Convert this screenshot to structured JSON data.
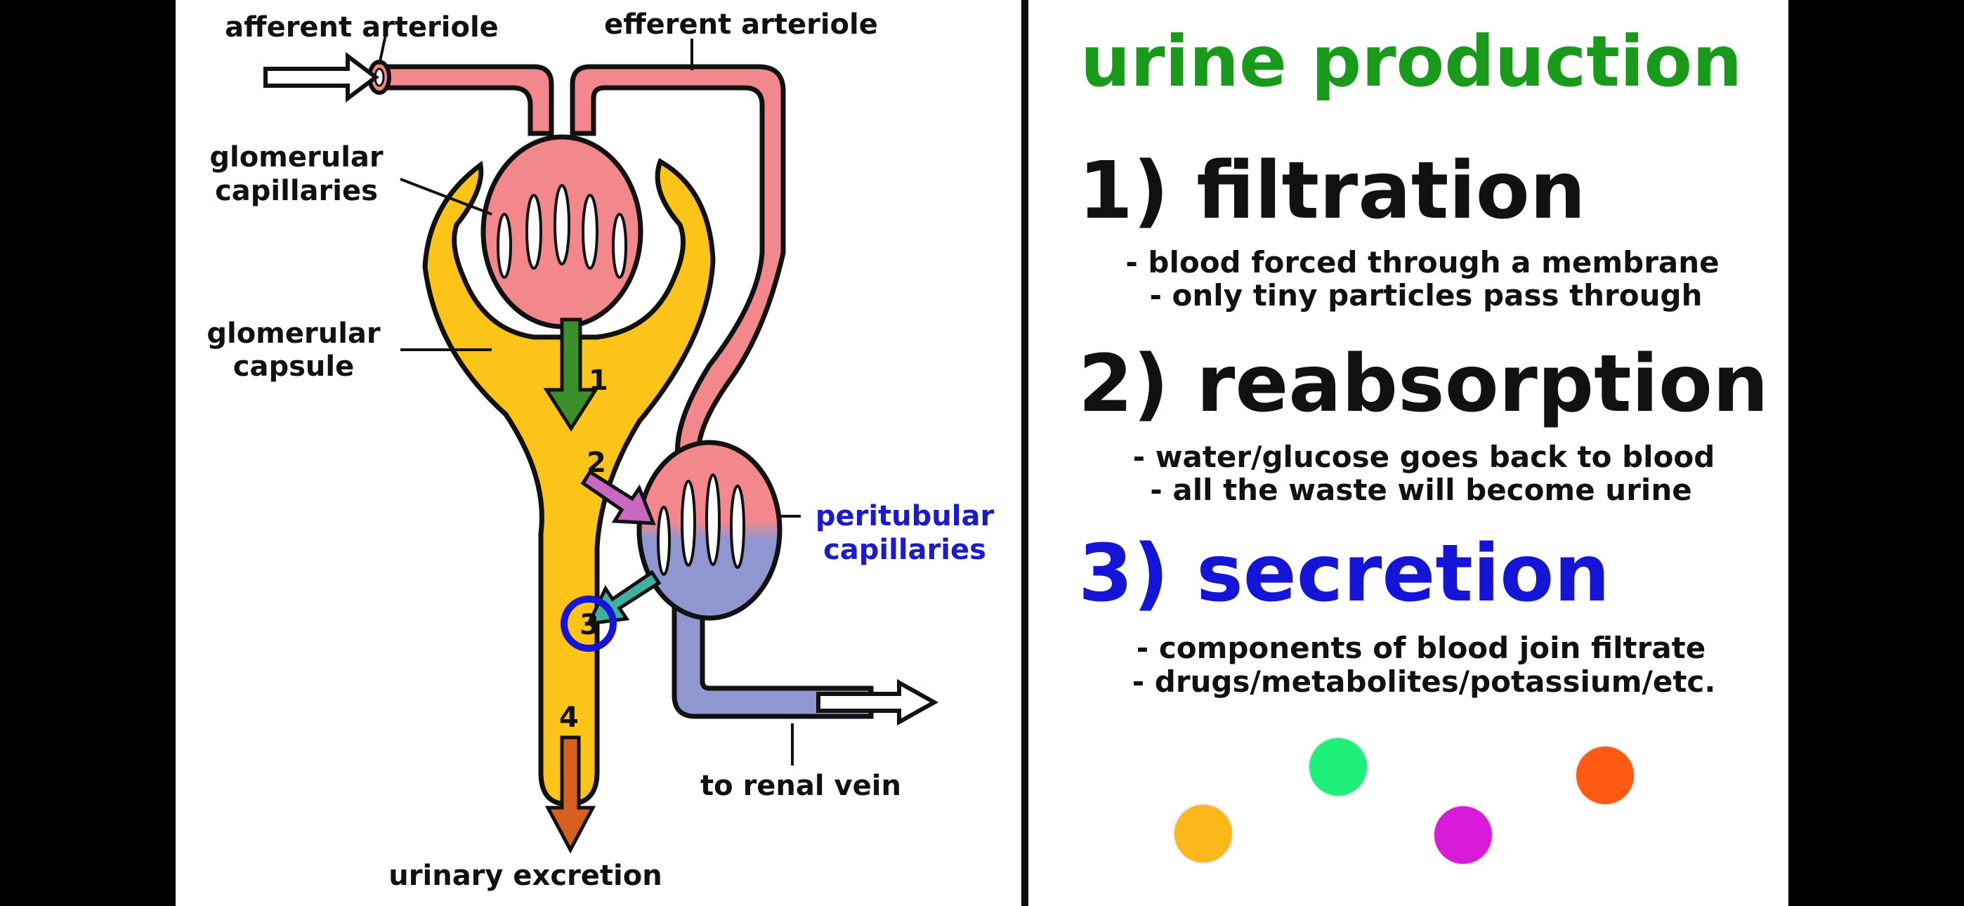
{
  "diagram": {
    "labels": {
      "afferent_arteriole": "afferent arteriole",
      "efferent_arteriole": "efferent arteriole",
      "glomerular_capillaries_line1": "glomerular",
      "glomerular_capillaries_line2": "capillaries",
      "glomerular_capsule_line1": "glomerular",
      "glomerular_capsule_line2": "capsule",
      "peritubular_capillaries_line1": "peritubular",
      "peritubular_capillaries_line2": "capillaries",
      "to_renal_vein": "to renal vein",
      "urinary_excretion": "urinary excretion"
    },
    "step_numbers": {
      "n1": "1",
      "n2": "2",
      "n3": "3",
      "n4": "4"
    }
  },
  "panel": {
    "title": "urine production",
    "steps": [
      {
        "heading": "1) filtration",
        "line1": "- blood forced through a membrane",
        "line2": "- only tiny particles pass through"
      },
      {
        "heading": "2) reabsorption",
        "line1": "- water/glucose goes back to blood",
        "line2": "- all the waste will become urine"
      },
      {
        "heading": "3) secretion",
        "line1": "- components of blood join filtrate",
        "line2": "- drugs/metabolites/potassium/etc."
      }
    ]
  },
  "colors": {
    "title_green": "#1a9a1a",
    "secretion_blue": "#1515d8",
    "peritubular_label_blue": "#1a1ad0",
    "capsule_yellow": "#fcc419",
    "blood_red": "#f2888c",
    "vein_blue": "#8f96d0",
    "arrow1_green": "#3a8f2a",
    "arrow2_magenta": "#c868c0",
    "arrow3_teal": "#40b0a0",
    "arrow4_orange": "#d8601f",
    "dot_yellow": "#fcb81a",
    "dot_green": "#1ff07a",
    "dot_magenta": "#d91ad9",
    "dot_orange": "#ff5a14"
  }
}
